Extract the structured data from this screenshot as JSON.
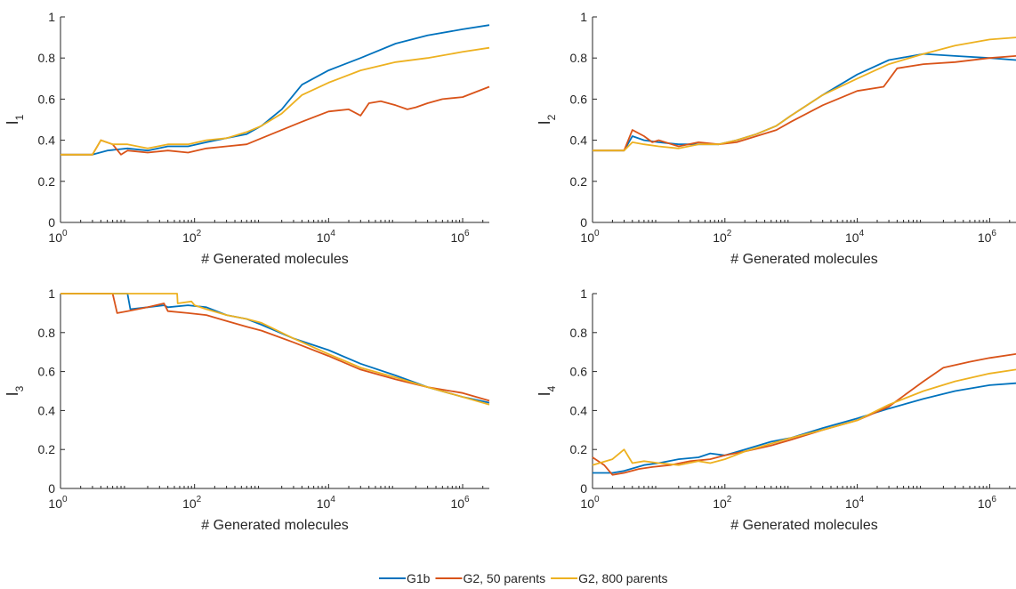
{
  "chart_data": [
    {
      "type": "line",
      "ylabel": "I",
      "ylabel_sub": "1",
      "xlabel": "# Generated molecules",
      "xscale": "log",
      "xlim": [
        1,
        2500000
      ],
      "ylim": [
        0,
        1
      ],
      "yticks": [
        "0",
        "0.2",
        "0.4",
        "0.6",
        "0.8",
        "1"
      ],
      "series": [
        {
          "name": "G1b",
          "color": "#0072BD",
          "points": [
            [
              1,
              0.33
            ],
            [
              3,
              0.33
            ],
            [
              5,
              0.35
            ],
            [
              10,
              0.36
            ],
            [
              20,
              0.35
            ],
            [
              40,
              0.37
            ],
            [
              80,
              0.37
            ],
            [
              150,
              0.39
            ],
            [
              300,
              0.41
            ],
            [
              600,
              0.43
            ],
            [
              1000,
              0.47
            ],
            [
              2000,
              0.55
            ],
            [
              4000,
              0.67
            ],
            [
              10000,
              0.74
            ],
            [
              30000,
              0.8
            ],
            [
              100000,
              0.87
            ],
            [
              300000,
              0.91
            ],
            [
              1000000,
              0.94
            ],
            [
              2500000,
              0.96
            ]
          ]
        },
        {
          "name": "G2, 50 parents",
          "color": "#D95319",
          "points": [
            [
              1,
              0.33
            ],
            [
              3,
              0.33
            ],
            [
              4,
              0.4
            ],
            [
              6,
              0.38
            ],
            [
              8,
              0.33
            ],
            [
              10,
              0.35
            ],
            [
              20,
              0.34
            ],
            [
              40,
              0.35
            ],
            [
              80,
              0.34
            ],
            [
              150,
              0.36
            ],
            [
              300,
              0.37
            ],
            [
              600,
              0.38
            ],
            [
              1000,
              0.41
            ],
            [
              2000,
              0.45
            ],
            [
              4000,
              0.49
            ],
            [
              10000,
              0.54
            ],
            [
              20000,
              0.55
            ],
            [
              30000,
              0.52
            ],
            [
              40000,
              0.58
            ],
            [
              60000,
              0.59
            ],
            [
              100000,
              0.57
            ],
            [
              150000,
              0.55
            ],
            [
              200000,
              0.56
            ],
            [
              300000,
              0.58
            ],
            [
              500000,
              0.6
            ],
            [
              1000000,
              0.61
            ],
            [
              2500000,
              0.66
            ]
          ]
        },
        {
          "name": "G2, 800 parents",
          "color": "#EDB120",
          "points": [
            [
              1,
              0.33
            ],
            [
              3,
              0.33
            ],
            [
              4,
              0.4
            ],
            [
              6,
              0.38
            ],
            [
              10,
              0.38
            ],
            [
              20,
              0.36
            ],
            [
              40,
              0.38
            ],
            [
              80,
              0.38
            ],
            [
              150,
              0.4
            ],
            [
              300,
              0.41
            ],
            [
              600,
              0.44
            ],
            [
              1000,
              0.47
            ],
            [
              2000,
              0.53
            ],
            [
              4000,
              0.62
            ],
            [
              10000,
              0.68
            ],
            [
              30000,
              0.74
            ],
            [
              100000,
              0.78
            ],
            [
              300000,
              0.8
            ],
            [
              1000000,
              0.83
            ],
            [
              2500000,
              0.85
            ]
          ]
        }
      ]
    },
    {
      "type": "line",
      "ylabel": "I",
      "ylabel_sub": "2",
      "xlabel": "# Generated molecules",
      "xscale": "log",
      "xlim": [
        1,
        2500000
      ],
      "ylim": [
        0,
        1
      ],
      "yticks": [
        "0",
        "0.2",
        "0.4",
        "0.6",
        "0.8",
        "1"
      ],
      "series": [
        {
          "name": "G1b",
          "color": "#0072BD",
          "points": [
            [
              1,
              0.35
            ],
            [
              3,
              0.35
            ],
            [
              4,
              0.42
            ],
            [
              6,
              0.4
            ],
            [
              10,
              0.39
            ],
            [
              20,
              0.38
            ],
            [
              40,
              0.38
            ],
            [
              80,
              0.38
            ],
            [
              150,
              0.4
            ],
            [
              300,
              0.43
            ],
            [
              600,
              0.47
            ],
            [
              1000,
              0.52
            ],
            [
              3000,
              0.62
            ],
            [
              10000,
              0.72
            ],
            [
              30000,
              0.79
            ],
            [
              100000,
              0.82
            ],
            [
              300000,
              0.81
            ],
            [
              1000000,
              0.8
            ],
            [
              2500000,
              0.79
            ]
          ]
        },
        {
          "name": "G2, 50 parents",
          "color": "#D95319",
          "points": [
            [
              1,
              0.35
            ],
            [
              3,
              0.35
            ],
            [
              4,
              0.45
            ],
            [
              6,
              0.42
            ],
            [
              8,
              0.39
            ],
            [
              10,
              0.4
            ],
            [
              20,
              0.37
            ],
            [
              40,
              0.39
            ],
            [
              80,
              0.38
            ],
            [
              150,
              0.39
            ],
            [
              300,
              0.42
            ],
            [
              600,
              0.45
            ],
            [
              1000,
              0.49
            ],
            [
              3000,
              0.57
            ],
            [
              10000,
              0.64
            ],
            [
              25000,
              0.66
            ],
            [
              40000,
              0.75
            ],
            [
              100000,
              0.77
            ],
            [
              300000,
              0.78
            ],
            [
              1000000,
              0.8
            ],
            [
              2500000,
              0.81
            ]
          ]
        },
        {
          "name": "G2, 800 parents",
          "color": "#EDB120",
          "points": [
            [
              1,
              0.35
            ],
            [
              3,
              0.35
            ],
            [
              4,
              0.39
            ],
            [
              6,
              0.38
            ],
            [
              10,
              0.37
            ],
            [
              20,
              0.36
            ],
            [
              40,
              0.38
            ],
            [
              80,
              0.38
            ],
            [
              150,
              0.4
            ],
            [
              300,
              0.43
            ],
            [
              600,
              0.47
            ],
            [
              1000,
              0.52
            ],
            [
              3000,
              0.62
            ],
            [
              10000,
              0.7
            ],
            [
              30000,
              0.77
            ],
            [
              100000,
              0.82
            ],
            [
              300000,
              0.86
            ],
            [
              1000000,
              0.89
            ],
            [
              2500000,
              0.9
            ]
          ]
        }
      ]
    },
    {
      "type": "line",
      "ylabel": "I",
      "ylabel_sub": "3",
      "xlabel": "# Generated molecules",
      "xscale": "log",
      "xlim": [
        1,
        2500000
      ],
      "ylim": [
        0,
        1
      ],
      "yticks": [
        "0",
        "0.2",
        "0.4",
        "0.6",
        "0.8",
        "1"
      ],
      "series": [
        {
          "name": "G1b",
          "color": "#0072BD",
          "points": [
            [
              1,
              1
            ],
            [
              10,
              1
            ],
            [
              11,
              0.92
            ],
            [
              20,
              0.93
            ],
            [
              35,
              0.94
            ],
            [
              40,
              0.93
            ],
            [
              80,
              0.94
            ],
            [
              150,
              0.93
            ],
            [
              300,
              0.89
            ],
            [
              600,
              0.87
            ],
            [
              1000,
              0.84
            ],
            [
              3000,
              0.77
            ],
            [
              10000,
              0.71
            ],
            [
              30000,
              0.64
            ],
            [
              100000,
              0.58
            ],
            [
              300000,
              0.52
            ],
            [
              1000000,
              0.47
            ],
            [
              2500000,
              0.44
            ]
          ]
        },
        {
          "name": "G2, 50 parents",
          "color": "#D95319",
          "points": [
            [
              1,
              1
            ],
            [
              6,
              1
            ],
            [
              7,
              0.9
            ],
            [
              10,
              0.91
            ],
            [
              20,
              0.93
            ],
            [
              35,
              0.95
            ],
            [
              40,
              0.91
            ],
            [
              80,
              0.9
            ],
            [
              150,
              0.89
            ],
            [
              300,
              0.86
            ],
            [
              600,
              0.83
            ],
            [
              1000,
              0.81
            ],
            [
              3000,
              0.75
            ],
            [
              10000,
              0.68
            ],
            [
              30000,
              0.61
            ],
            [
              100000,
              0.56
            ],
            [
              300000,
              0.52
            ],
            [
              1000000,
              0.49
            ],
            [
              2500000,
              0.45
            ]
          ]
        },
        {
          "name": "G2, 800 parents",
          "color": "#EDB120",
          "points": [
            [
              1,
              1
            ],
            [
              55,
              1
            ],
            [
              56,
              0.95
            ],
            [
              90,
              0.96
            ],
            [
              100,
              0.94
            ],
            [
              150,
              0.92
            ],
            [
              300,
              0.89
            ],
            [
              600,
              0.87
            ],
            [
              1000,
              0.85
            ],
            [
              3000,
              0.77
            ],
            [
              10000,
              0.69
            ],
            [
              30000,
              0.62
            ],
            [
              100000,
              0.57
            ],
            [
              300000,
              0.52
            ],
            [
              1000000,
              0.47
            ],
            [
              2500000,
              0.43
            ]
          ]
        }
      ]
    },
    {
      "type": "line",
      "ylabel": "I",
      "ylabel_sub": "4",
      "xlabel": "# Generated molecules",
      "xscale": "log",
      "xlim": [
        1,
        2500000
      ],
      "ylim": [
        0,
        1
      ],
      "yticks": [
        "0",
        "0.2",
        "0.4",
        "0.6",
        "0.8",
        "1"
      ],
      "series": [
        {
          "name": "G1b",
          "color": "#0072BD",
          "points": [
            [
              1,
              0.08
            ],
            [
              2,
              0.08
            ],
            [
              3,
              0.09
            ],
            [
              6,
              0.12
            ],
            [
              10,
              0.13
            ],
            [
              20,
              0.15
            ],
            [
              40,
              0.16
            ],
            [
              60,
              0.18
            ],
            [
              100,
              0.17
            ],
            [
              200,
              0.2
            ],
            [
              500,
              0.24
            ],
            [
              1000,
              0.26
            ],
            [
              3000,
              0.31
            ],
            [
              10000,
              0.36
            ],
            [
              30000,
              0.41
            ],
            [
              100000,
              0.46
            ],
            [
              300000,
              0.5
            ],
            [
              1000000,
              0.53
            ],
            [
              2500000,
              0.54
            ]
          ]
        },
        {
          "name": "G2, 50 parents",
          "color": "#D95319",
          "points": [
            [
              1,
              0.16
            ],
            [
              1.5,
              0.12
            ],
            [
              2,
              0.07
            ],
            [
              3,
              0.08
            ],
            [
              5,
              0.1
            ],
            [
              8,
              0.11
            ],
            [
              15,
              0.12
            ],
            [
              30,
              0.14
            ],
            [
              60,
              0.15
            ],
            [
              100,
              0.17
            ],
            [
              200,
              0.19
            ],
            [
              500,
              0.22
            ],
            [
              1000,
              0.25
            ],
            [
              3000,
              0.3
            ],
            [
              10000,
              0.35
            ],
            [
              30000,
              0.42
            ],
            [
              100000,
              0.55
            ],
            [
              200000,
              0.62
            ],
            [
              500000,
              0.65
            ],
            [
              1000000,
              0.67
            ],
            [
              2500000,
              0.69
            ]
          ]
        },
        {
          "name": "G2, 800 parents",
          "color": "#EDB120",
          "points": [
            [
              1,
              0.12
            ],
            [
              2,
              0.15
            ],
            [
              3,
              0.2
            ],
            [
              4,
              0.13
            ],
            [
              6,
              0.14
            ],
            [
              10,
              0.13
            ],
            [
              20,
              0.12
            ],
            [
              40,
              0.14
            ],
            [
              60,
              0.13
            ],
            [
              100,
              0.15
            ],
            [
              200,
              0.19
            ],
            [
              500,
              0.23
            ],
            [
              1000,
              0.26
            ],
            [
              3000,
              0.3
            ],
            [
              10000,
              0.35
            ],
            [
              30000,
              0.43
            ],
            [
              100000,
              0.5
            ],
            [
              300000,
              0.55
            ],
            [
              1000000,
              0.59
            ],
            [
              2500000,
              0.61
            ]
          ]
        }
      ]
    }
  ],
  "legend": {
    "placement": "bottom-center",
    "items": [
      {
        "label": "G1b",
        "color": "#0072BD"
      },
      {
        "label": "G2, 50 parents",
        "color": "#D95319"
      },
      {
        "label": "G2, 800 parents",
        "color": "#EDB120"
      }
    ]
  }
}
